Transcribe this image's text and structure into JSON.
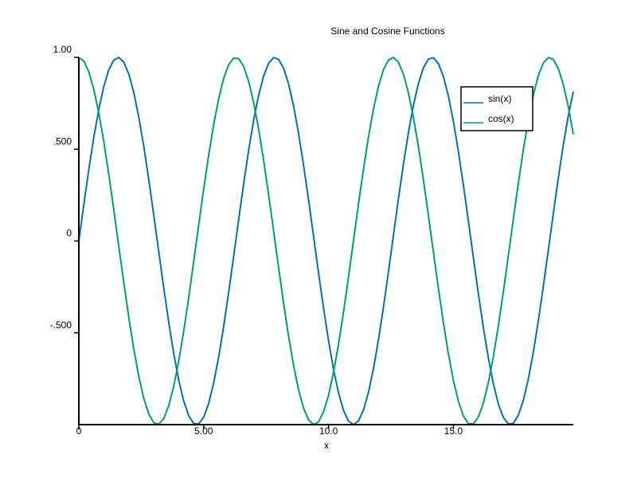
{
  "chart_data": {
    "type": "line",
    "title": "Sine and Cosine Functions",
    "xlabel": "x",
    "ylabel": "",
    "xlim": [
      0,
      19.8
    ],
    "ylim": [
      -1,
      1
    ],
    "x_ticks": [
      {
        "value": 0,
        "label": "0"
      },
      {
        "value": 5,
        "label": "5.00"
      },
      {
        "value": 10,
        "label": "10.0"
      },
      {
        "value": 15,
        "label": "15.0"
      }
    ],
    "y_ticks": [
      {
        "value": 1,
        "label": "1.00"
      },
      {
        "value": 0.5,
        "label": ".500"
      },
      {
        "value": 0,
        "label": "0"
      },
      {
        "value": -0.5,
        "label": "-.500"
      }
    ],
    "x_start": 0,
    "x_end": 19.8,
    "x_step": 0.2,
    "legend_position": "top-right",
    "grid": false,
    "series": [
      {
        "name": "sin(x)",
        "function": "sin",
        "color": "#0072b2"
      },
      {
        "name": "cos(x)",
        "function": "cos",
        "color": "#009e73"
      }
    ]
  }
}
